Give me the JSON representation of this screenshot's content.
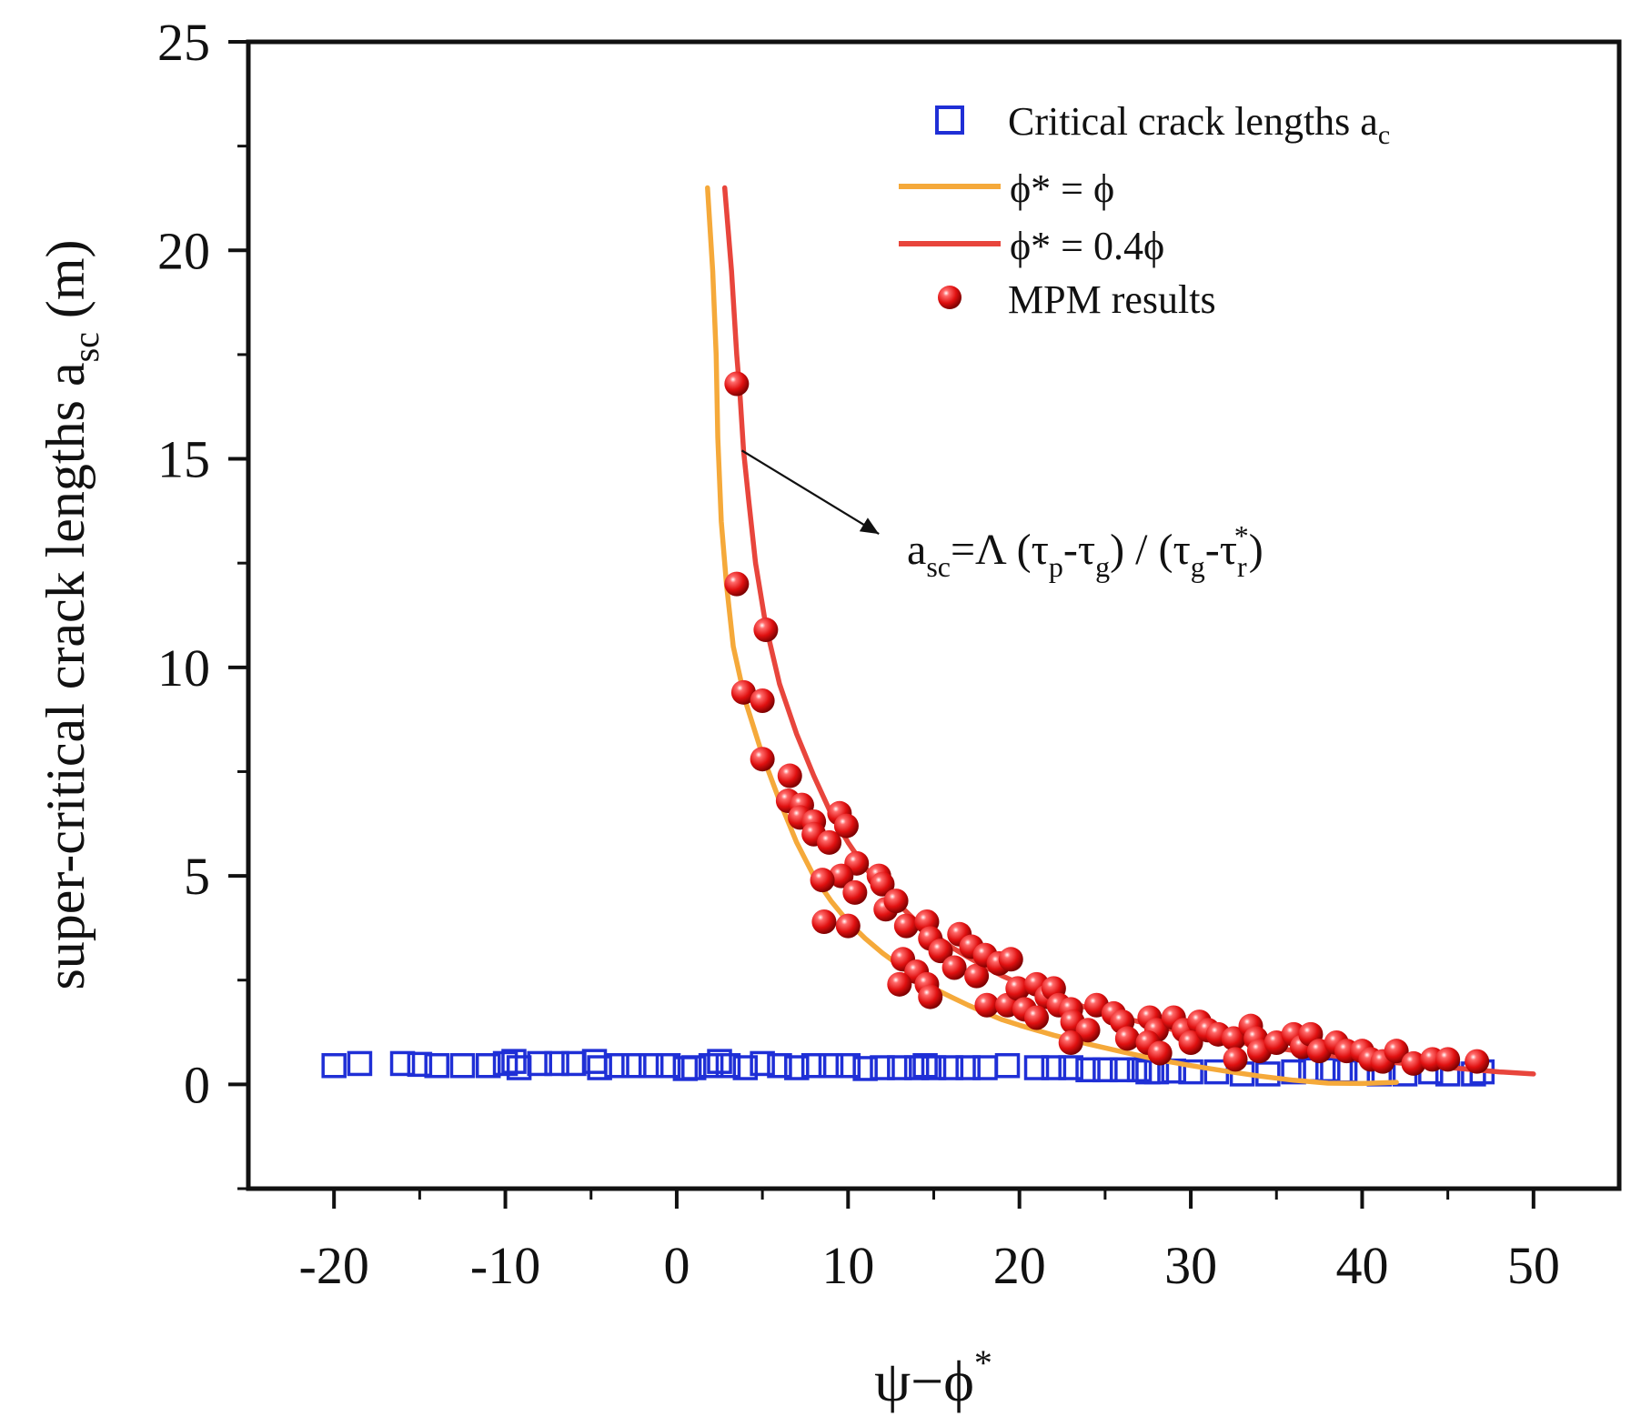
{
  "chart_data": {
    "type": "scatter",
    "x_title_base": "ψ−ϕ",
    "x_title_sup": "*",
    "y_title_base": "super-critical crack lengths a",
    "y_title_sub": "sc",
    "y_title_unit": " (m)",
    "xlim": [
      -25,
      55
    ],
    "ylim": [
      -2.5,
      25
    ],
    "x_ticks": [
      -20,
      -10,
      0,
      10,
      20,
      30,
      40,
      50
    ],
    "x_tick_labels": [
      "-20",
      "-10",
      "0",
      "10",
      "20",
      "30",
      "40",
      "50"
    ],
    "y_ticks": [
      0,
      5,
      10,
      15,
      20,
      25
    ],
    "y_tick_labels": [
      "0",
      "5",
      "10",
      "15",
      "20",
      "25"
    ],
    "colors": {
      "critical": "#1f2fd6",
      "phi_full": "#f5a93a",
      "phi_04": "#e8453c",
      "mpm": "#e01010"
    },
    "legend": {
      "critical": {
        "label": "Critical crack lengths a",
        "sub": "c"
      },
      "phi_full": {
        "label": "ϕ* = ϕ"
      },
      "phi_04": {
        "label": "ϕ* = 0.4ϕ"
      },
      "mpm": {
        "label": "MPM results"
      }
    },
    "annotation": {
      "a": "a",
      "sc": "sc",
      "eq": "=Λ (τ",
      "p": "p",
      "minus": "-τ",
      "g1": "g",
      "mid": ") / (τ",
      "g2": "g",
      "minus2": "-τ",
      "r": "r",
      "star": "*",
      "close": ")",
      "arrow_from": [
        3.8,
        15.2
      ],
      "arrow_to": [
        11.8,
        13.2
      ]
    },
    "series": [
      {
        "name": "Critical crack lengths a_c",
        "kind": "hollow-square",
        "points": [
          [
            -20,
            0.45
          ],
          [
            -18.5,
            0.5
          ],
          [
            -16,
            0.5
          ],
          [
            -15,
            0.48
          ],
          [
            -14,
            0.45
          ],
          [
            -12.5,
            0.45
          ],
          [
            -11,
            0.45
          ],
          [
            -10,
            0.5
          ],
          [
            -9.5,
            0.55
          ],
          [
            -9.2,
            0.4
          ],
          [
            -8,
            0.5
          ],
          [
            -7,
            0.5
          ],
          [
            -6,
            0.5
          ],
          [
            -4.8,
            0.55
          ],
          [
            -4.5,
            0.4
          ],
          [
            -3.5,
            0.45
          ],
          [
            -2.5,
            0.45
          ],
          [
            -1.5,
            0.45
          ],
          [
            -0.5,
            0.45
          ],
          [
            0.5,
            0.38
          ],
          [
            1,
            0.4
          ],
          [
            2,
            0.45
          ],
          [
            2.5,
            0.55
          ],
          [
            3,
            0.45
          ],
          [
            4,
            0.4
          ],
          [
            5,
            0.5
          ],
          [
            6,
            0.45
          ],
          [
            7,
            0.4
          ],
          [
            8,
            0.45
          ],
          [
            9,
            0.45
          ],
          [
            10,
            0.45
          ],
          [
            11,
            0.38
          ],
          [
            12,
            0.4
          ],
          [
            13,
            0.4
          ],
          [
            14,
            0.4
          ],
          [
            14.5,
            0.45
          ],
          [
            15,
            0.4
          ],
          [
            16,
            0.4
          ],
          [
            17,
            0.4
          ],
          [
            18,
            0.4
          ],
          [
            19.3,
            0.45
          ],
          [
            21,
            0.4
          ],
          [
            22,
            0.4
          ],
          [
            23,
            0.4
          ],
          [
            24,
            0.35
          ],
          [
            25,
            0.35
          ],
          [
            26,
            0.35
          ],
          [
            27,
            0.35
          ],
          [
            27.5,
            0.3
          ],
          [
            28,
            0.3
          ],
          [
            29,
            0.32
          ],
          [
            30,
            0.3
          ],
          [
            31.5,
            0.3
          ],
          [
            33,
            0.25
          ],
          [
            34.5,
            0.25
          ],
          [
            36,
            0.3
          ],
          [
            37,
            0.35
          ],
          [
            38,
            0.35
          ],
          [
            39,
            0.32
          ],
          [
            40,
            0.3
          ],
          [
            41,
            0.25
          ],
          [
            42.5,
            0.25
          ],
          [
            44,
            0.3
          ],
          [
            45,
            0.25
          ],
          [
            46.5,
            0.25
          ],
          [
            47,
            0.3
          ]
        ]
      },
      {
        "name": "ϕ* = ϕ",
        "kind": "line",
        "points": [
          [
            1.8,
            21.5
          ],
          [
            2.1,
            19.5
          ],
          [
            2.3,
            17.5
          ],
          [
            2.4,
            15.5
          ],
          [
            2.6,
            13.5
          ],
          [
            2.9,
            12
          ],
          [
            3.3,
            10.5
          ],
          [
            4,
            9.2
          ],
          [
            5,
            7.9
          ],
          [
            6,
            6.8
          ],
          [
            7,
            5.8
          ],
          [
            8,
            5
          ],
          [
            9,
            4.4
          ],
          [
            10,
            3.9
          ],
          [
            11,
            3.5
          ],
          [
            12,
            3.15
          ],
          [
            13,
            2.85
          ],
          [
            14,
            2.55
          ],
          [
            15,
            2.3
          ],
          [
            16,
            2.1
          ],
          [
            17,
            1.9
          ],
          [
            18,
            1.72
          ],
          [
            19,
            1.55
          ],
          [
            20,
            1.42
          ],
          [
            22,
            1.18
          ],
          [
            24,
            0.97
          ],
          [
            26,
            0.78
          ],
          [
            28,
            0.6
          ],
          [
            30,
            0.45
          ],
          [
            32,
            0.32
          ],
          [
            34,
            0.2
          ],
          [
            36,
            0.1
          ],
          [
            38,
            0.03
          ],
          [
            40,
            0.02
          ],
          [
            42,
            0.05
          ]
        ]
      },
      {
        "name": "ϕ* = 0.4ϕ",
        "kind": "line",
        "points": [
          [
            2.8,
            21.5
          ],
          [
            3.2,
            19.5
          ],
          [
            3.5,
            17.5
          ],
          [
            3.7,
            16.5
          ],
          [
            3.9,
            15.2
          ],
          [
            4.2,
            14
          ],
          [
            4.6,
            12.5
          ],
          [
            5.2,
            11
          ],
          [
            6,
            9.6
          ],
          [
            7,
            8.4
          ],
          [
            8,
            7.4
          ],
          [
            9,
            6.5
          ],
          [
            10,
            5.8
          ],
          [
            11,
            5.2
          ],
          [
            12,
            4.7
          ],
          [
            13,
            4.3
          ],
          [
            14,
            3.9
          ],
          [
            15,
            3.6
          ],
          [
            16,
            3.3
          ],
          [
            17,
            3.05
          ],
          [
            18,
            2.82
          ],
          [
            19,
            2.6
          ],
          [
            20,
            2.42
          ],
          [
            22,
            2.1
          ],
          [
            24,
            1.83
          ],
          [
            26,
            1.6
          ],
          [
            28,
            1.4
          ],
          [
            30,
            1.22
          ],
          [
            32,
            1.07
          ],
          [
            34,
            0.93
          ],
          [
            36,
            0.81
          ],
          [
            38,
            0.7
          ],
          [
            40,
            0.6
          ],
          [
            42,
            0.52
          ],
          [
            44,
            0.44
          ],
          [
            46,
            0.37
          ],
          [
            48,
            0.3
          ],
          [
            50,
            0.25
          ]
        ]
      },
      {
        "name": "MPM results",
        "kind": "sphere",
        "points": [
          [
            3.5,
            16.8
          ],
          [
            3.5,
            12
          ],
          [
            5.2,
            10.9
          ],
          [
            3.9,
            9.4
          ],
          [
            5,
            9.2
          ],
          [
            5,
            7.8
          ],
          [
            6.6,
            7.4
          ],
          [
            6.5,
            6.8
          ],
          [
            7.3,
            6.7
          ],
          [
            7.2,
            6.4
          ],
          [
            8,
            6.3
          ],
          [
            8,
            6
          ],
          [
            8.9,
            5.8
          ],
          [
            9.5,
            6.5
          ],
          [
            9.9,
            6.2
          ],
          [
            10.5,
            5.3
          ],
          [
            9.6,
            5
          ],
          [
            8.5,
            4.9
          ],
          [
            10.4,
            4.6
          ],
          [
            11.8,
            5
          ],
          [
            12,
            4.8
          ],
          [
            12.2,
            4.2
          ],
          [
            12.8,
            4.4
          ],
          [
            10,
            3.8
          ],
          [
            8.6,
            3.9
          ],
          [
            13.4,
            3.8
          ],
          [
            14.6,
            3.9
          ],
          [
            14.8,
            3.5
          ],
          [
            15.4,
            3.2
          ],
          [
            16.5,
            3.6
          ],
          [
            17.2,
            3.3
          ],
          [
            16.2,
            2.8
          ],
          [
            17.5,
            2.6
          ],
          [
            18,
            3.1
          ],
          [
            18.8,
            2.9
          ],
          [
            19.5,
            3
          ],
          [
            13.2,
            3
          ],
          [
            14,
            2.7
          ],
          [
            14.6,
            2.4
          ],
          [
            14.8,
            2.1
          ],
          [
            13,
            2.4
          ],
          [
            18.1,
            1.9
          ],
          [
            19.3,
            1.9
          ],
          [
            19.9,
            2.3
          ],
          [
            20.3,
            1.8
          ],
          [
            21,
            2.4
          ],
          [
            21.6,
            2.1
          ],
          [
            22,
            2.3
          ],
          [
            21,
            1.6
          ],
          [
            22.3,
            1.9
          ],
          [
            23,
            1.8
          ],
          [
            24.5,
            1.9
          ],
          [
            25.5,
            1.7
          ],
          [
            26,
            1.5
          ],
          [
            23.1,
            1.5
          ],
          [
            24,
            1.3
          ],
          [
            23,
            1
          ],
          [
            26.3,
            1.1
          ],
          [
            27.6,
            1.6
          ],
          [
            28,
            1.3
          ],
          [
            27.5,
            1
          ],
          [
            28.2,
            0.75
          ],
          [
            29,
            1.6
          ],
          [
            29.6,
            1.3
          ],
          [
            30.5,
            1.5
          ],
          [
            30,
            1
          ],
          [
            31,
            1.3
          ],
          [
            31.6,
            1.2
          ],
          [
            32.5,
            1.1
          ],
          [
            33.5,
            1.4
          ],
          [
            33.8,
            1.1
          ],
          [
            32.6,
            0.6
          ],
          [
            34,
            0.8
          ],
          [
            35,
            1
          ],
          [
            36,
            1.2
          ],
          [
            36.5,
            0.9
          ],
          [
            37,
            1.2
          ],
          [
            37.5,
            0.8
          ],
          [
            38.5,
            1
          ],
          [
            39.1,
            0.8
          ],
          [
            40,
            0.8
          ],
          [
            40.5,
            0.6
          ],
          [
            41.2,
            0.55
          ],
          [
            42,
            0.8
          ],
          [
            43,
            0.5
          ],
          [
            44.1,
            0.6
          ],
          [
            45,
            0.6
          ],
          [
            46.7,
            0.55
          ]
        ]
      }
    ]
  }
}
